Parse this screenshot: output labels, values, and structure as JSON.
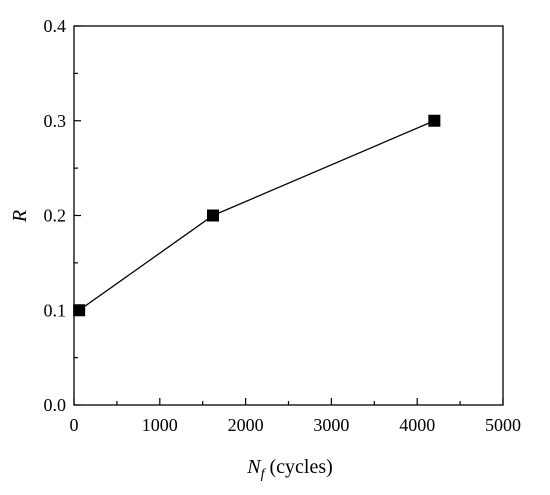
{
  "chart_data": {
    "type": "line",
    "title": "",
    "xlabel": "N",
    "xlabel_subscript": "f",
    "xlabel_unit": " (cycles)",
    "ylabel": "R",
    "xlim": [
      0,
      5000
    ],
    "ylim": [
      0.0,
      0.4
    ],
    "xticks": [
      0,
      1000,
      2000,
      3000,
      4000,
      5000
    ],
    "xtick_labels": [
      "0",
      "1000",
      "2000",
      "3000",
      "4000",
      "5000"
    ],
    "yticks": [
      0.0,
      0.1,
      0.2,
      0.3,
      0.4
    ],
    "ytick_labels": [
      "0.0",
      "0.1",
      "0.2",
      "0.3",
      "0.4"
    ],
    "grid": false,
    "legend": "none",
    "marker": "square",
    "color": "#000000",
    "series": [
      {
        "x": [
          60,
          1620,
          4200
        ],
        "y": [
          0.1,
          0.2,
          0.3
        ]
      }
    ]
  }
}
